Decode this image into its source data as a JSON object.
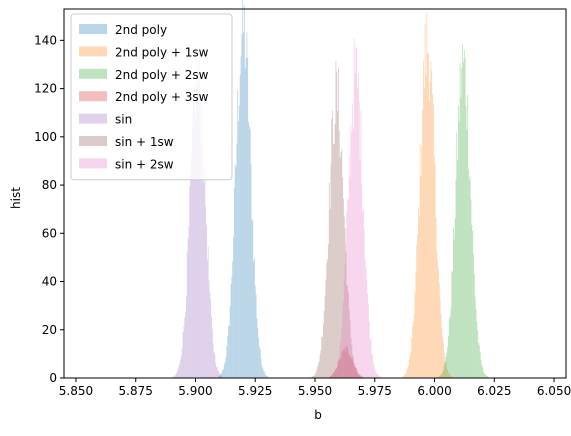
{
  "chart_data": {
    "type": "histogram",
    "title": "",
    "xlabel": "b",
    "ylabel": "hist",
    "xlim": [
      5.845,
      6.055
    ],
    "ylim": [
      0,
      153
    ],
    "grid": false,
    "legend_position": "top-left",
    "x_ticks": [
      5.85,
      5.875,
      5.9,
      5.925,
      5.95,
      5.975,
      6.0,
      6.025,
      6.05
    ],
    "x_tick_labels": [
      "5.850",
      "5.875",
      "5.900",
      "5.925",
      "5.950",
      "5.975",
      "6.000",
      "6.025",
      "6.050"
    ],
    "y_ticks": [
      0,
      20,
      40,
      60,
      80,
      100,
      120,
      140
    ],
    "y_tick_labels": [
      "0",
      "20",
      "40",
      "60",
      "80",
      "100",
      "120",
      "140"
    ],
    "series": [
      {
        "name": "2nd poly",
        "color": "#1f77b4",
        "mean": 5.92,
        "std": 0.0031,
        "peak": 145
      },
      {
        "name": "2nd poly + 1sw",
        "color": "#ff7f0e",
        "mean": 5.997,
        "std": 0.0031,
        "peak": 139
      },
      {
        "name": "2nd poly + 2sw",
        "color": "#2ca02c",
        "mean": 6.012,
        "std": 0.0031,
        "peak": 130
      },
      {
        "name": "2nd poly + 3sw",
        "color": "#d62728",
        "mean": 5.963,
        "std": 0.0028,
        "peak": 12
      },
      {
        "name": "sin",
        "color": "#9467bd",
        "mean": 5.901,
        "std": 0.0031,
        "peak": 127
      },
      {
        "name": "sin + 1sw",
        "color": "#8c564b",
        "mean": 5.959,
        "std": 0.0031,
        "peak": 117
      },
      {
        "name": "sin + 2sw",
        "color": "#e377c2",
        "mean": 5.967,
        "std": 0.0031,
        "peak": 126
      }
    ]
  }
}
